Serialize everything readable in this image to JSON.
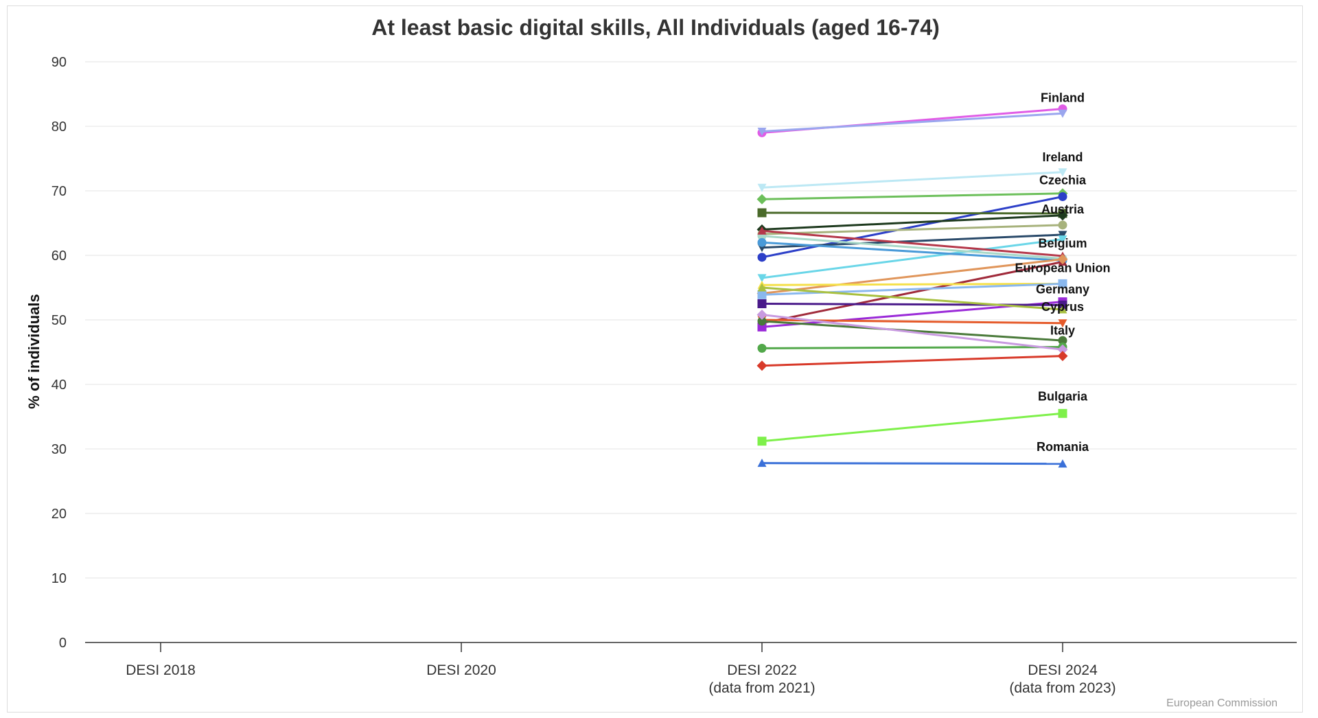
{
  "chart_data": {
    "type": "line",
    "title": "At least basic digital skills, All Individuals (aged 16-74)",
    "ylabel": "% of individuals",
    "xlabel": "",
    "ylim": [
      0,
      90
    ],
    "yticks": [
      0,
      10,
      20,
      30,
      40,
      50,
      60,
      70,
      80,
      90
    ],
    "grid": true,
    "categories": [
      [
        "DESI 2018"
      ],
      [
        "DESI 2020"
      ],
      [
        "DESI 2022",
        "(data from 2021)"
      ],
      [
        "DESI 2024",
        "(data from 2023)"
      ]
    ],
    "series": [
      {
        "name": "Finland",
        "color": "#e05ce6",
        "marker": "circle",
        "values": [
          null,
          null,
          79.0,
          82.7
        ]
      },
      {
        "name": "",
        "color": "#9aa6ee",
        "marker": "triangle-down",
        "values": [
          null,
          null,
          79.2,
          82.0
        ]
      },
      {
        "name": "Ireland",
        "color": "#bce8f4",
        "marker": "triangle-down",
        "values": [
          null,
          null,
          70.5,
          72.9
        ]
      },
      {
        "name": "",
        "color": "#6cbf5a",
        "marker": "diamond",
        "values": [
          null,
          null,
          68.7,
          69.6
        ]
      },
      {
        "name": "Czechia",
        "color": "#2c3fc8",
        "marker": "circle",
        "values": [
          null,
          null,
          59.7,
          69.1
        ]
      },
      {
        "name": "",
        "color": "#4a6a2a",
        "marker": "square",
        "values": [
          null,
          null,
          66.6,
          66.5
        ]
      },
      {
        "name": "",
        "color": "#1e3a1e",
        "marker": "diamond",
        "values": [
          null,
          null,
          64.0,
          66.2
        ]
      },
      {
        "name": "Austria",
        "color": "#a7b27c",
        "marker": "circle",
        "values": [
          null,
          null,
          63.3,
          64.7
        ]
      },
      {
        "name": "",
        "color": "#2a4a6a",
        "marker": "triangle-down",
        "values": [
          null,
          null,
          61.2,
          63.2
        ]
      },
      {
        "name": "",
        "color": "#6ad6e8",
        "marker": "triangle-down",
        "values": [
          null,
          null,
          56.5,
          62.5
        ]
      },
      {
        "name": "",
        "color": "#a8d8c8",
        "marker": "circle",
        "values": [
          null,
          null,
          63.0,
          59.5
        ]
      },
      {
        "name": "",
        "color": "#4a9ad8",
        "marker": "circle",
        "values": [
          null,
          null,
          62.0,
          59.2
        ]
      },
      {
        "name": "",
        "color": "#b5384a",
        "marker": "triangle",
        "values": [
          null,
          null,
          63.8,
          59.9
        ]
      },
      {
        "name": "Belgium",
        "color": "#a02a3a",
        "marker": "triangle",
        "values": [
          null,
          null,
          49.5,
          59.0
        ]
      },
      {
        "name": "",
        "color": "#e0955a",
        "marker": "diamond",
        "values": [
          null,
          null,
          54.1,
          59.4
        ]
      },
      {
        "name": "European Union",
        "color": "#f5e04a",
        "marker": "triangle",
        "values": [
          null,
          null,
          55.4,
          55.6
        ]
      },
      {
        "name": "",
        "color": "#8ab8ee",
        "marker": "square",
        "values": [
          null,
          null,
          53.9,
          55.6
        ]
      },
      {
        "name": "Germany",
        "color": "#9a2ad8",
        "marker": "square",
        "values": [
          null,
          null,
          48.9,
          52.8
        ]
      },
      {
        "name": "",
        "color": "#4a1a8a",
        "marker": "square",
        "values": [
          null,
          null,
          52.5,
          52.3
        ]
      },
      {
        "name": "",
        "color": "#a8c040",
        "marker": "triangle",
        "values": [
          null,
          null,
          55.0,
          51.6
        ]
      },
      {
        "name": "Cyprus",
        "color": "#e55a2a",
        "marker": "triangle-down",
        "values": [
          null,
          null,
          50.0,
          49.5
        ]
      },
      {
        "name": "",
        "color": "#4a7a3a",
        "marker": "circle",
        "values": [
          null,
          null,
          49.8,
          46.8
        ]
      },
      {
        "name": "Italy",
        "color": "#52a84a",
        "marker": "circle",
        "values": [
          null,
          null,
          45.6,
          45.8
        ]
      },
      {
        "name": "",
        "color": "#c89ae0",
        "marker": "diamond",
        "values": [
          null,
          null,
          50.8,
          45.4
        ]
      },
      {
        "name": "",
        "color": "#d83a2a",
        "marker": "diamond",
        "values": [
          null,
          null,
          42.9,
          44.4
        ]
      },
      {
        "name": "Bulgaria",
        "color": "#7ef04a",
        "marker": "square",
        "values": [
          null,
          null,
          31.2,
          35.5
        ]
      },
      {
        "name": "Romania",
        "color": "#3a70d8",
        "marker": "triangle",
        "values": [
          null,
          null,
          27.8,
          27.7
        ]
      }
    ],
    "labels": [
      {
        "text": "Finland",
        "category": 3,
        "y": 83.8
      },
      {
        "text": "Ireland",
        "category": 3,
        "y": 74.6
      },
      {
        "text": "Czechia",
        "category": 3,
        "y": 71.0
      },
      {
        "text": "Austria",
        "category": 3,
        "y": 66.5
      },
      {
        "text": "Belgium",
        "category": 3,
        "y": 61.2
      },
      {
        "text": "European Union",
        "category": 3,
        "y": 57.4
      },
      {
        "text": "Germany",
        "category": 3,
        "y": 54.1
      },
      {
        "text": "Cyprus",
        "category": 3,
        "y": 51.4
      },
      {
        "text": "Italy",
        "category": 3,
        "y": 47.7
      },
      {
        "text": "Bulgaria",
        "category": 3,
        "y": 37.5
      },
      {
        "text": "Romania",
        "category": 3,
        "y": 29.7
      }
    ]
  },
  "credit": "European Commission"
}
